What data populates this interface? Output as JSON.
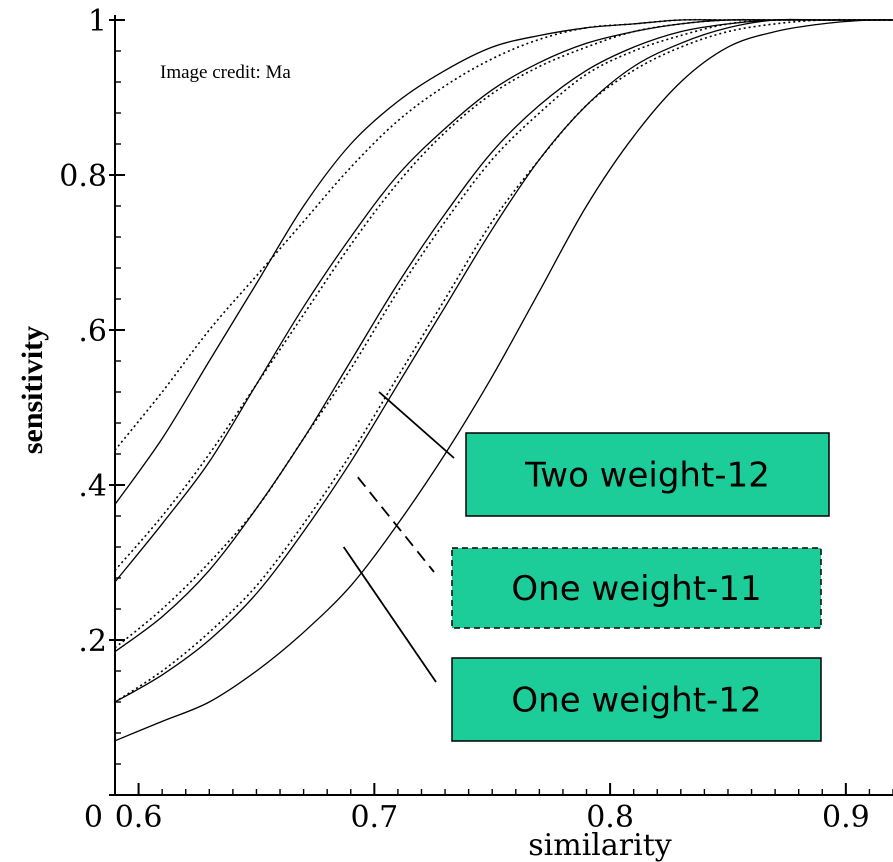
{
  "chart_data": {
    "type": "line",
    "xlabel": "similarity",
    "ylabel": "sensitivity",
    "xlim": [
      0.59,
      0.92
    ],
    "ylim": [
      0,
      1
    ],
    "x_tick_labels": [
      "0.6",
      "0.7",
      "0.8",
      "0.9"
    ],
    "x_ticks": [
      0.6,
      0.7,
      0.8,
      0.9
    ],
    "y_tick_labels": [
      "0",
      ".2",
      ".4",
      ".6",
      "0.8",
      "1"
    ],
    "y_ticks": [
      0,
      0.2,
      0.4,
      0.6,
      0.8,
      1
    ],
    "x_origin_label": "0",
    "annotation": "Image credit: Ma",
    "series": [
      {
        "style": "solid",
        "x": [
          0.59,
          0.61,
          0.63,
          0.65,
          0.67,
          0.69,
          0.71,
          0.73,
          0.75,
          0.77,
          0.79,
          0.81,
          0.83,
          0.85,
          0.87,
          0.89,
          0.91,
          0.92
        ],
        "y": [
          0.375,
          0.46,
          0.56,
          0.66,
          0.76,
          0.84,
          0.895,
          0.935,
          0.965,
          0.98,
          0.99,
          0.995,
          1,
          1,
          1,
          1,
          1,
          1
        ]
      },
      {
        "style": "dotted",
        "x": [
          0.59,
          0.61,
          0.63,
          0.65,
          0.67,
          0.69,
          0.71,
          0.73,
          0.75,
          0.77,
          0.79,
          0.81,
          0.83,
          0.85,
          0.87,
          0.89,
          0.91,
          0.92
        ],
        "y": [
          0.445,
          0.52,
          0.6,
          0.67,
          0.74,
          0.81,
          0.87,
          0.915,
          0.95,
          0.975,
          0.99,
          0.995,
          1,
          1,
          1,
          1,
          1,
          1
        ]
      },
      {
        "style": "solid",
        "x": [
          0.59,
          0.61,
          0.63,
          0.65,
          0.67,
          0.69,
          0.71,
          0.73,
          0.75,
          0.77,
          0.79,
          0.81,
          0.83,
          0.85,
          0.87,
          0.89,
          0.91,
          0.92
        ],
        "y": [
          0.275,
          0.35,
          0.43,
          0.53,
          0.63,
          0.72,
          0.8,
          0.86,
          0.91,
          0.945,
          0.97,
          0.985,
          0.995,
          1,
          1,
          1,
          1,
          1
        ]
      },
      {
        "style": "dotted",
        "x": [
          0.59,
          0.61,
          0.63,
          0.65,
          0.67,
          0.69,
          0.71,
          0.73,
          0.75,
          0.77,
          0.79,
          0.81,
          0.83,
          0.85,
          0.87,
          0.89,
          0.91,
          0.92
        ],
        "y": [
          0.29,
          0.36,
          0.44,
          0.53,
          0.62,
          0.71,
          0.79,
          0.855,
          0.905,
          0.94,
          0.965,
          0.985,
          0.995,
          1,
          1,
          1,
          1,
          1
        ]
      },
      {
        "style": "solid",
        "x": [
          0.59,
          0.61,
          0.63,
          0.65,
          0.67,
          0.69,
          0.71,
          0.73,
          0.75,
          0.77,
          0.79,
          0.81,
          0.83,
          0.85,
          0.87,
          0.89,
          0.91,
          0.92
        ],
        "y": [
          0.185,
          0.23,
          0.29,
          0.37,
          0.46,
          0.56,
          0.66,
          0.75,
          0.83,
          0.89,
          0.935,
          0.965,
          0.985,
          0.995,
          1,
          1,
          1,
          1
        ]
      },
      {
        "style": "dotted",
        "x": [
          0.59,
          0.61,
          0.63,
          0.65,
          0.67,
          0.69,
          0.71,
          0.73,
          0.75,
          0.77,
          0.79,
          0.81,
          0.83,
          0.85,
          0.87,
          0.89,
          0.91,
          0.92
        ],
        "y": [
          0.19,
          0.24,
          0.3,
          0.37,
          0.46,
          0.55,
          0.65,
          0.74,
          0.82,
          0.88,
          0.93,
          0.96,
          0.98,
          0.995,
          1,
          1,
          1,
          1
        ]
      },
      {
        "style": "solid",
        "x": [
          0.59,
          0.61,
          0.63,
          0.65,
          0.67,
          0.69,
          0.71,
          0.73,
          0.75,
          0.77,
          0.79,
          0.81,
          0.83,
          0.85,
          0.87,
          0.89,
          0.91,
          0.92
        ],
        "y": [
          0.12,
          0.155,
          0.2,
          0.26,
          0.34,
          0.43,
          0.53,
          0.63,
          0.73,
          0.82,
          0.89,
          0.94,
          0.97,
          0.99,
          1,
          1,
          1,
          1
        ]
      },
      {
        "style": "dotted",
        "x": [
          0.59,
          0.61,
          0.63,
          0.65,
          0.67,
          0.69,
          0.71,
          0.73,
          0.75,
          0.77,
          0.79,
          0.81,
          0.83,
          0.85,
          0.87,
          0.89,
          0.91,
          0.92
        ],
        "y": [
          0.12,
          0.16,
          0.21,
          0.27,
          0.35,
          0.44,
          0.54,
          0.64,
          0.74,
          0.82,
          0.89,
          0.935,
          0.965,
          0.985,
          0.995,
          1,
          1,
          1
        ]
      },
      {
        "style": "solid",
        "x": [
          0.59,
          0.61,
          0.63,
          0.65,
          0.67,
          0.69,
          0.71,
          0.73,
          0.75,
          0.77,
          0.79,
          0.81,
          0.83,
          0.85,
          0.87,
          0.89,
          0.91,
          0.92
        ],
        "y": [
          0.07,
          0.095,
          0.12,
          0.16,
          0.21,
          0.27,
          0.35,
          0.44,
          0.54,
          0.65,
          0.76,
          0.85,
          0.92,
          0.965,
          0.985,
          0.995,
          1,
          1
        ]
      }
    ],
    "callouts": [
      {
        "label": "Two weight-12",
        "border": "solid",
        "pointer_dash": false,
        "pointer_from": [
          0.702,
          0.52
        ]
      },
      {
        "label": "One weight-11",
        "border": "dashed",
        "pointer_dash": true,
        "pointer_from": [
          0.693,
          0.41
        ]
      },
      {
        "label": "One weight-12",
        "border": "solid",
        "pointer_dash": false,
        "pointer_from": [
          0.687,
          0.32
        ]
      }
    ],
    "colors": {
      "line": "#000000",
      "callout_fill": "#1ccc99",
      "background": "#ffffff"
    }
  }
}
